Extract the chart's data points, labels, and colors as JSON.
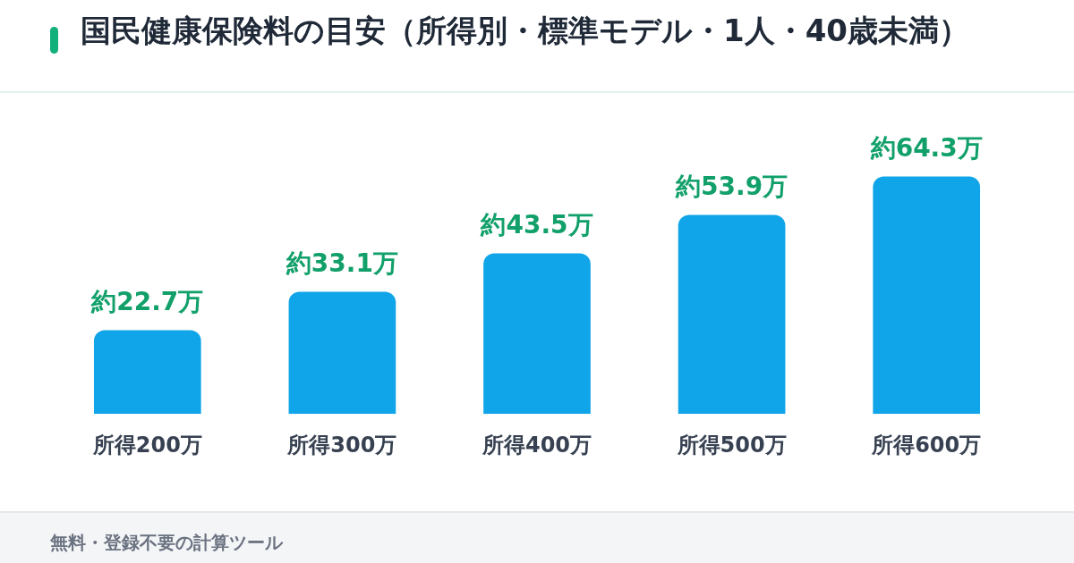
{
  "chart_data": {
    "type": "bar",
    "title": "国民健康保険料の目安（所得別・標準モデル・1人・40歳未満）",
    "categories": [
      "所得200万",
      "所得300万",
      "所得400万",
      "所得500万",
      "所得600万"
    ],
    "values": [
      22.7,
      33.1,
      43.5,
      53.9,
      64.3
    ],
    "value_labels": [
      "約22.7万",
      "約33.1万",
      "約43.5万",
      "約53.9万",
      "約64.3万"
    ],
    "color": "#10a5e8",
    "annotations": [
      "無料・登録不要の計算ツール"
    ]
  }
}
